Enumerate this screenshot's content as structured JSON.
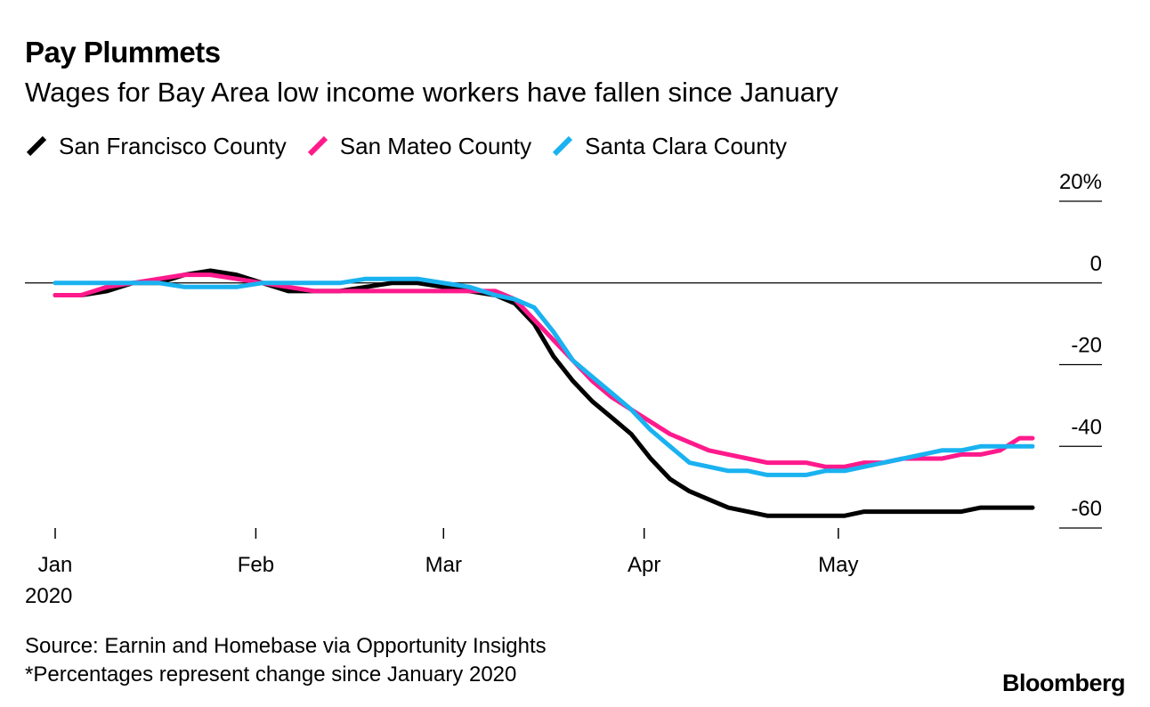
{
  "title": "Pay Plummets",
  "subtitle": "Wages for Bay Area low income workers have fallen since January",
  "source_line": "Source: Earnin and Homebase via Opportunity Insights",
  "note_line": "*Percentages represent change since January 2020",
  "brand": "Bloomberg",
  "chart_data": {
    "type": "line",
    "legend_position": "top-left",
    "grid": false,
    "y_unit": "%",
    "ylim": [
      -60,
      20
    ],
    "yticks": [
      20,
      0,
      -20,
      -40,
      -60
    ],
    "ytick_labels": [
      "20%",
      "0",
      "-20",
      "-40",
      "-60"
    ],
    "xlim": [
      "2020-01-01",
      "2020-05-31"
    ],
    "xticks": [
      "2020-01-01",
      "2020-02-01",
      "2020-03-01",
      "2020-04-01",
      "2020-05-01"
    ],
    "xtick_labels": [
      "Jan",
      "Feb",
      "Mar",
      "Apr",
      "May"
    ],
    "x_year_label": "2020",
    "series": [
      {
        "name": "San Francisco County",
        "color": "#000000",
        "x": [
          "2020-01-01",
          "2020-01-05",
          "2020-01-09",
          "2020-01-13",
          "2020-01-17",
          "2020-01-21",
          "2020-01-25",
          "2020-01-29",
          "2020-02-02",
          "2020-02-06",
          "2020-02-10",
          "2020-02-14",
          "2020-02-18",
          "2020-02-22",
          "2020-02-26",
          "2020-03-01",
          "2020-03-05",
          "2020-03-09",
          "2020-03-12",
          "2020-03-15",
          "2020-03-18",
          "2020-03-21",
          "2020-03-24",
          "2020-03-27",
          "2020-03-30",
          "2020-04-02",
          "2020-04-05",
          "2020-04-08",
          "2020-04-11",
          "2020-04-14",
          "2020-04-17",
          "2020-04-20",
          "2020-04-23",
          "2020-04-26",
          "2020-04-29",
          "2020-05-02",
          "2020-05-05",
          "2020-05-08",
          "2020-05-11",
          "2020-05-14",
          "2020-05-17",
          "2020-05-20",
          "2020-05-23",
          "2020-05-26",
          "2020-05-29",
          "2020-05-31"
        ],
        "y": [
          -3,
          -3,
          -2,
          0,
          0,
          2,
          3,
          2,
          0,
          -2,
          -2,
          -2,
          -1,
          0,
          0,
          -1,
          -2,
          -3,
          -5,
          -10,
          -18,
          -24,
          -29,
          -33,
          -37,
          -43,
          -48,
          -51,
          -53,
          -55,
          -56,
          -57,
          -57,
          -57,
          -57,
          -57,
          -56,
          -56,
          -56,
          -56,
          -56,
          -56,
          -55,
          -55,
          -55,
          -55
        ]
      },
      {
        "name": "San Mateo County",
        "color": "#ff1a8c",
        "x": [
          "2020-01-01",
          "2020-01-05",
          "2020-01-09",
          "2020-01-13",
          "2020-01-17",
          "2020-01-21",
          "2020-01-25",
          "2020-01-29",
          "2020-02-02",
          "2020-02-06",
          "2020-02-10",
          "2020-02-14",
          "2020-02-18",
          "2020-02-22",
          "2020-02-26",
          "2020-03-01",
          "2020-03-05",
          "2020-03-09",
          "2020-03-12",
          "2020-03-15",
          "2020-03-18",
          "2020-03-21",
          "2020-03-24",
          "2020-03-27",
          "2020-03-30",
          "2020-04-02",
          "2020-04-05",
          "2020-04-08",
          "2020-04-11",
          "2020-04-14",
          "2020-04-17",
          "2020-04-20",
          "2020-04-23",
          "2020-04-26",
          "2020-04-29",
          "2020-05-02",
          "2020-05-05",
          "2020-05-08",
          "2020-05-11",
          "2020-05-14",
          "2020-05-17",
          "2020-05-20",
          "2020-05-23",
          "2020-05-26",
          "2020-05-29",
          "2020-05-31"
        ],
        "y": [
          -3,
          -3,
          -1,
          0,
          1,
          2,
          2,
          1,
          0,
          -1,
          -2,
          -2,
          -2,
          -2,
          -2,
          -2,
          -2,
          -2,
          -4,
          -9,
          -14,
          -19,
          -24,
          -28,
          -31,
          -34,
          -37,
          -39,
          -41,
          -42,
          -43,
          -44,
          -44,
          -44,
          -45,
          -45,
          -44,
          -44,
          -43,
          -43,
          -43,
          -42,
          -42,
          -41,
          -38,
          -38
        ]
      },
      {
        "name": "Santa Clara County",
        "color": "#1ab2f0",
        "x": [
          "2020-01-01",
          "2020-01-05",
          "2020-01-09",
          "2020-01-13",
          "2020-01-17",
          "2020-01-21",
          "2020-01-25",
          "2020-01-29",
          "2020-02-02",
          "2020-02-06",
          "2020-02-10",
          "2020-02-14",
          "2020-02-18",
          "2020-02-22",
          "2020-02-26",
          "2020-03-01",
          "2020-03-05",
          "2020-03-09",
          "2020-03-12",
          "2020-03-15",
          "2020-03-18",
          "2020-03-21",
          "2020-03-24",
          "2020-03-27",
          "2020-03-30",
          "2020-04-02",
          "2020-04-05",
          "2020-04-08",
          "2020-04-11",
          "2020-04-14",
          "2020-04-17",
          "2020-04-20",
          "2020-04-23",
          "2020-04-26",
          "2020-04-29",
          "2020-05-02",
          "2020-05-05",
          "2020-05-08",
          "2020-05-11",
          "2020-05-14",
          "2020-05-17",
          "2020-05-20",
          "2020-05-23",
          "2020-05-26",
          "2020-05-29",
          "2020-05-31"
        ],
        "y": [
          0,
          0,
          0,
          0,
          0,
          -1,
          -1,
          -1,
          0,
          0,
          0,
          0,
          1,
          1,
          1,
          0,
          -1,
          -3,
          -4,
          -6,
          -12,
          -19,
          -23,
          -27,
          -31,
          -36,
          -40,
          -44,
          -45,
          -46,
          -46,
          -47,
          -47,
          -47,
          -46,
          -46,
          -45,
          -44,
          -43,
          -42,
          -41,
          -41,
          -40,
          -40,
          -40,
          -40
        ]
      }
    ]
  }
}
